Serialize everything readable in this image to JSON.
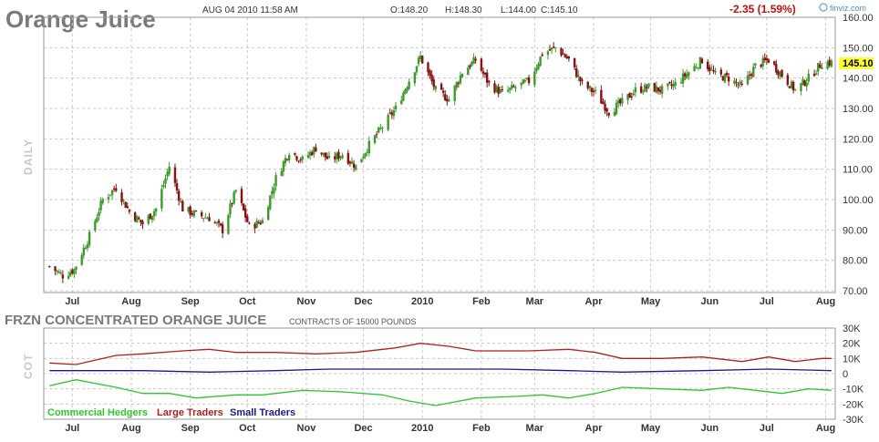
{
  "header": {
    "title": "Orange Juice",
    "timestamp": "AUG 04 2010 11:58 AM",
    "open": "O:148.20",
    "high": "H:148.30",
    "low": "L:144.00",
    "close": "C:145.10",
    "change": "-2.35 (1.59%)",
    "logo": "finviz.com",
    "last_price_tag": "145.10"
  },
  "colors": {
    "up": "#3f9a2e",
    "down": "#8b1010",
    "change": "#c01010",
    "commercial": "#2ec62e",
    "large": "#b02020",
    "small": "#1a1a8a",
    "price_tag_bg": "#ffff33"
  },
  "price_panel": {
    "side_label": "DAILY",
    "y_ticks": [
      "160.00",
      "150.00",
      "140.00",
      "130.00",
      "120.00",
      "110.00",
      "100.00",
      "90.00",
      "80.00",
      "70.00"
    ],
    "months": [
      "Jul",
      "Aug",
      "Sep",
      "Oct",
      "Nov",
      "Dec",
      "2010",
      "Feb",
      "Mar",
      "Apr",
      "May",
      "Jun",
      "Jul",
      "Aug"
    ]
  },
  "cot_panel": {
    "title": "FRZN CONCENTRATED ORANGE JUICE",
    "subtitle": "CONTRACTS OF 15000 POUNDS",
    "side_label": "COT",
    "y_ticks": [
      "30K",
      "20K",
      "10K",
      "0",
      "-10K",
      "-20K",
      "-30K"
    ],
    "legend": [
      "Commercial Hedgers",
      "Large Traders",
      "Small Traders"
    ]
  },
  "chart_data": [
    {
      "type": "candlestick",
      "title": "Orange Juice",
      "ylim": [
        70,
        160
      ],
      "x_labels": [
        "Jul",
        "Aug",
        "Sep",
        "Oct",
        "Nov",
        "Dec",
        "2010",
        "Feb",
        "Mar",
        "Apr",
        "May",
        "Jun",
        "Jul",
        "Aug"
      ],
      "close_path": [
        {
          "x": "2009-06-19",
          "y": 78
        },
        {
          "x": "2009-06-26",
          "y": 75
        },
        {
          "x": "2009-07-02",
          "y": 77
        },
        {
          "x": "2009-07-10",
          "y": 88
        },
        {
          "x": "2009-07-17",
          "y": 100
        },
        {
          "x": "2009-07-24",
          "y": 104
        },
        {
          "x": "2009-07-31",
          "y": 96
        },
        {
          "x": "2009-08-07",
          "y": 92
        },
        {
          "x": "2009-08-14",
          "y": 97
        },
        {
          "x": "2009-08-21",
          "y": 111
        },
        {
          "x": "2009-08-28",
          "y": 97
        },
        {
          "x": "2009-09-04",
          "y": 95
        },
        {
          "x": "2009-09-11",
          "y": 94
        },
        {
          "x": "2009-09-18",
          "y": 90
        },
        {
          "x": "2009-09-25",
          "y": 103
        },
        {
          "x": "2009-10-02",
          "y": 91
        },
        {
          "x": "2009-10-09",
          "y": 93
        },
        {
          "x": "2009-10-16",
          "y": 107
        },
        {
          "x": "2009-10-23",
          "y": 116
        },
        {
          "x": "2009-10-30",
          "y": 113
        },
        {
          "x": "2009-11-06",
          "y": 117
        },
        {
          "x": "2009-11-13",
          "y": 113
        },
        {
          "x": "2009-11-20",
          "y": 115
        },
        {
          "x": "2009-11-27",
          "y": 111
        },
        {
          "x": "2009-12-04",
          "y": 118
        },
        {
          "x": "2009-12-11",
          "y": 124
        },
        {
          "x": "2009-12-18",
          "y": 130
        },
        {
          "x": "2009-12-24",
          "y": 138
        },
        {
          "x": "2009-12-31",
          "y": 147
        },
        {
          "x": "2010-01-08",
          "y": 136
        },
        {
          "x": "2010-01-15",
          "y": 133
        },
        {
          "x": "2010-01-22",
          "y": 142
        },
        {
          "x": "2010-01-29",
          "y": 146
        },
        {
          "x": "2010-02-05",
          "y": 138
        },
        {
          "x": "2010-02-12",
          "y": 135
        },
        {
          "x": "2010-02-19",
          "y": 137
        },
        {
          "x": "2010-02-26",
          "y": 139
        },
        {
          "x": "2010-03-05",
          "y": 148
        },
        {
          "x": "2010-03-12",
          "y": 150
        },
        {
          "x": "2010-03-19",
          "y": 146
        },
        {
          "x": "2010-03-26",
          "y": 138
        },
        {
          "x": "2010-04-02",
          "y": 135
        },
        {
          "x": "2010-04-09",
          "y": 129
        },
        {
          "x": "2010-04-16",
          "y": 132
        },
        {
          "x": "2010-04-23",
          "y": 136
        },
        {
          "x": "2010-04-30",
          "y": 137
        },
        {
          "x": "2010-05-07",
          "y": 136
        },
        {
          "x": "2010-05-14",
          "y": 138
        },
        {
          "x": "2010-05-21",
          "y": 142
        },
        {
          "x": "2010-05-28",
          "y": 146
        },
        {
          "x": "2010-06-04",
          "y": 141
        },
        {
          "x": "2010-06-11",
          "y": 140
        },
        {
          "x": "2010-06-18",
          "y": 137
        },
        {
          "x": "2010-06-25",
          "y": 144
        },
        {
          "x": "2010-07-02",
          "y": 146
        },
        {
          "x": "2010-07-09",
          "y": 141
        },
        {
          "x": "2010-07-16",
          "y": 136
        },
        {
          "x": "2010-07-23",
          "y": 140
        },
        {
          "x": "2010-07-30",
          "y": 145
        },
        {
          "x": "2010-08-04",
          "y": 145.1
        }
      ]
    },
    {
      "type": "line",
      "title": "FRZN CONCENTRATED ORANGE JUICE",
      "ylim": [
        -30000,
        30000
      ],
      "series": [
        {
          "name": "Commercial Hedgers",
          "values": [
            {
              "x": "2009-06-19",
              "y": -8000
            },
            {
              "x": "2009-07-03",
              "y": -4000
            },
            {
              "x": "2009-07-24",
              "y": -9000
            },
            {
              "x": "2009-08-07",
              "y": -13000
            },
            {
              "x": "2009-08-21",
              "y": -13000
            },
            {
              "x": "2009-09-04",
              "y": -16000
            },
            {
              "x": "2009-09-25",
              "y": -14000
            },
            {
              "x": "2009-10-09",
              "y": -14000
            },
            {
              "x": "2009-10-30",
              "y": -11000
            },
            {
              "x": "2009-11-20",
              "y": -12000
            },
            {
              "x": "2009-12-11",
              "y": -14000
            },
            {
              "x": "2009-12-25",
              "y": -18000
            },
            {
              "x": "2010-01-08",
              "y": -21000
            },
            {
              "x": "2010-01-29",
              "y": -16000
            },
            {
              "x": "2010-02-19",
              "y": -15000
            },
            {
              "x": "2010-03-05",
              "y": -14000
            },
            {
              "x": "2010-03-19",
              "y": -16000
            },
            {
              "x": "2010-04-02",
              "y": -13000
            },
            {
              "x": "2010-04-16",
              "y": -9000
            },
            {
              "x": "2010-05-07",
              "y": -10000
            },
            {
              "x": "2010-05-28",
              "y": -11000
            },
            {
              "x": "2010-06-11",
              "y": -9000
            },
            {
              "x": "2010-06-25",
              "y": -11000
            },
            {
              "x": "2010-07-09",
              "y": -13000
            },
            {
              "x": "2010-07-23",
              "y": -10000
            },
            {
              "x": "2010-08-04",
              "y": -11000
            }
          ]
        },
        {
          "name": "Large Traders",
          "values": [
            {
              "x": "2009-06-19",
              "y": 7000
            },
            {
              "x": "2009-07-03",
              "y": 6000
            },
            {
              "x": "2009-07-24",
              "y": 12000
            },
            {
              "x": "2009-08-07",
              "y": 13000
            },
            {
              "x": "2009-08-28",
              "y": 15000
            },
            {
              "x": "2009-09-11",
              "y": 16000
            },
            {
              "x": "2009-09-25",
              "y": 14000
            },
            {
              "x": "2009-10-16",
              "y": 14000
            },
            {
              "x": "2009-11-06",
              "y": 13000
            },
            {
              "x": "2009-11-27",
              "y": 14000
            },
            {
              "x": "2009-12-18",
              "y": 17000
            },
            {
              "x": "2009-12-31",
              "y": 20000
            },
            {
              "x": "2010-01-15",
              "y": 18000
            },
            {
              "x": "2010-01-29",
              "y": 15000
            },
            {
              "x": "2010-02-26",
              "y": 15000
            },
            {
              "x": "2010-03-19",
              "y": 16000
            },
            {
              "x": "2010-04-02",
              "y": 14000
            },
            {
              "x": "2010-04-16",
              "y": 10000
            },
            {
              "x": "2010-05-07",
              "y": 10000
            },
            {
              "x": "2010-05-28",
              "y": 11000
            },
            {
              "x": "2010-06-18",
              "y": 8000
            },
            {
              "x": "2010-07-02",
              "y": 11000
            },
            {
              "x": "2010-07-16",
              "y": 8000
            },
            {
              "x": "2010-07-30",
              "y": 10000
            },
            {
              "x": "2010-08-04",
              "y": 10000
            }
          ]
        },
        {
          "name": "Small Traders",
          "values": [
            {
              "x": "2009-06-19",
              "y": 2000
            },
            {
              "x": "2009-08-07",
              "y": 2000
            },
            {
              "x": "2009-09-11",
              "y": 1000
            },
            {
              "x": "2009-10-16",
              "y": 2000
            },
            {
              "x": "2009-11-13",
              "y": 3000
            },
            {
              "x": "2009-12-31",
              "y": 3000
            },
            {
              "x": "2010-02-12",
              "y": 3000
            },
            {
              "x": "2010-03-19",
              "y": 2000
            },
            {
              "x": "2010-04-16",
              "y": 1000
            },
            {
              "x": "2010-05-28",
              "y": 2000
            },
            {
              "x": "2010-07-02",
              "y": 3000
            },
            {
              "x": "2010-08-04",
              "y": 2000
            }
          ]
        }
      ]
    }
  ]
}
